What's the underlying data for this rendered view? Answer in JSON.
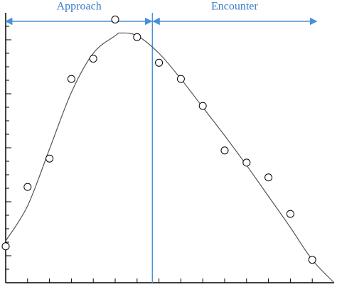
{
  "chart_data": {
    "type": "scatter",
    "annotations": [
      "Approach",
      "Encounter"
    ],
    "x": [
      0,
      1,
      2,
      3,
      4,
      5,
      6,
      7,
      8,
      9,
      10,
      11,
      12,
      13,
      14
    ],
    "values": [
      2.7,
      7.1,
      9.2,
      15.1,
      16.6,
      19.5,
      18.2,
      16.3,
      15.1,
      13.1,
      9.8,
      8.9,
      7.8,
      5.1,
      1.7
    ],
    "fit": {
      "x": [
        0,
        1,
        2,
        3,
        4,
        5,
        5.25,
        6,
        7,
        8,
        9,
        10,
        11,
        12,
        13,
        14,
        15
      ],
      "values": [
        3.1,
        5.7,
        9.9,
        14.1,
        17.0,
        18.3,
        18.5,
        18.3,
        17.0,
        15.1,
        13.0,
        10.9,
        8.7,
        6.4,
        4.1,
        1.7,
        0
      ]
    },
    "divider": 6.7,
    "arrow_end": 14.2,
    "xlim": [
      0,
      15
    ],
    "ylim": [
      0,
      20
    ],
    "xticks": [
      1,
      2,
      3,
      4,
      5,
      6,
      7,
      8,
      9,
      10,
      11,
      12,
      13,
      14
    ],
    "yticks": [
      1,
      2,
      3,
      4,
      5,
      6,
      7,
      8,
      9,
      10,
      11,
      12,
      13,
      14,
      15,
      16,
      17,
      18,
      19
    ],
    "color": "#000000",
    "guide_color": "#4a90d9"
  }
}
